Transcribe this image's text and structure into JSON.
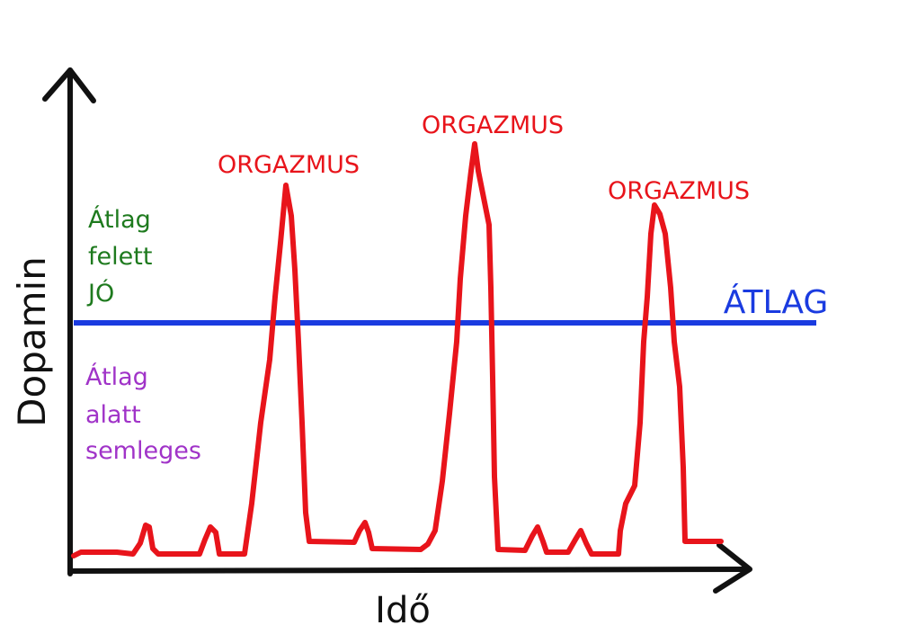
{
  "axes": {
    "y_label": "Dopamin",
    "x_label": "Idő"
  },
  "baseline": {
    "label": "ÁTLAG",
    "color": "#1a3be0"
  },
  "regions": {
    "above": {
      "lines": [
        "Átlag",
        "felett",
        "JÓ"
      ],
      "color": "#1e7a1e"
    },
    "below": {
      "lines": [
        "Átlag",
        "alatt",
        "semleges"
      ],
      "color": "#a033c8"
    }
  },
  "peaks": [
    {
      "label": "ORGAZMUS"
    },
    {
      "label": "ORGAZMUS"
    },
    {
      "label": "ORGAZMUS"
    }
  ],
  "curve": {
    "color": "#e8141b"
  },
  "axis_color": "#111111"
}
